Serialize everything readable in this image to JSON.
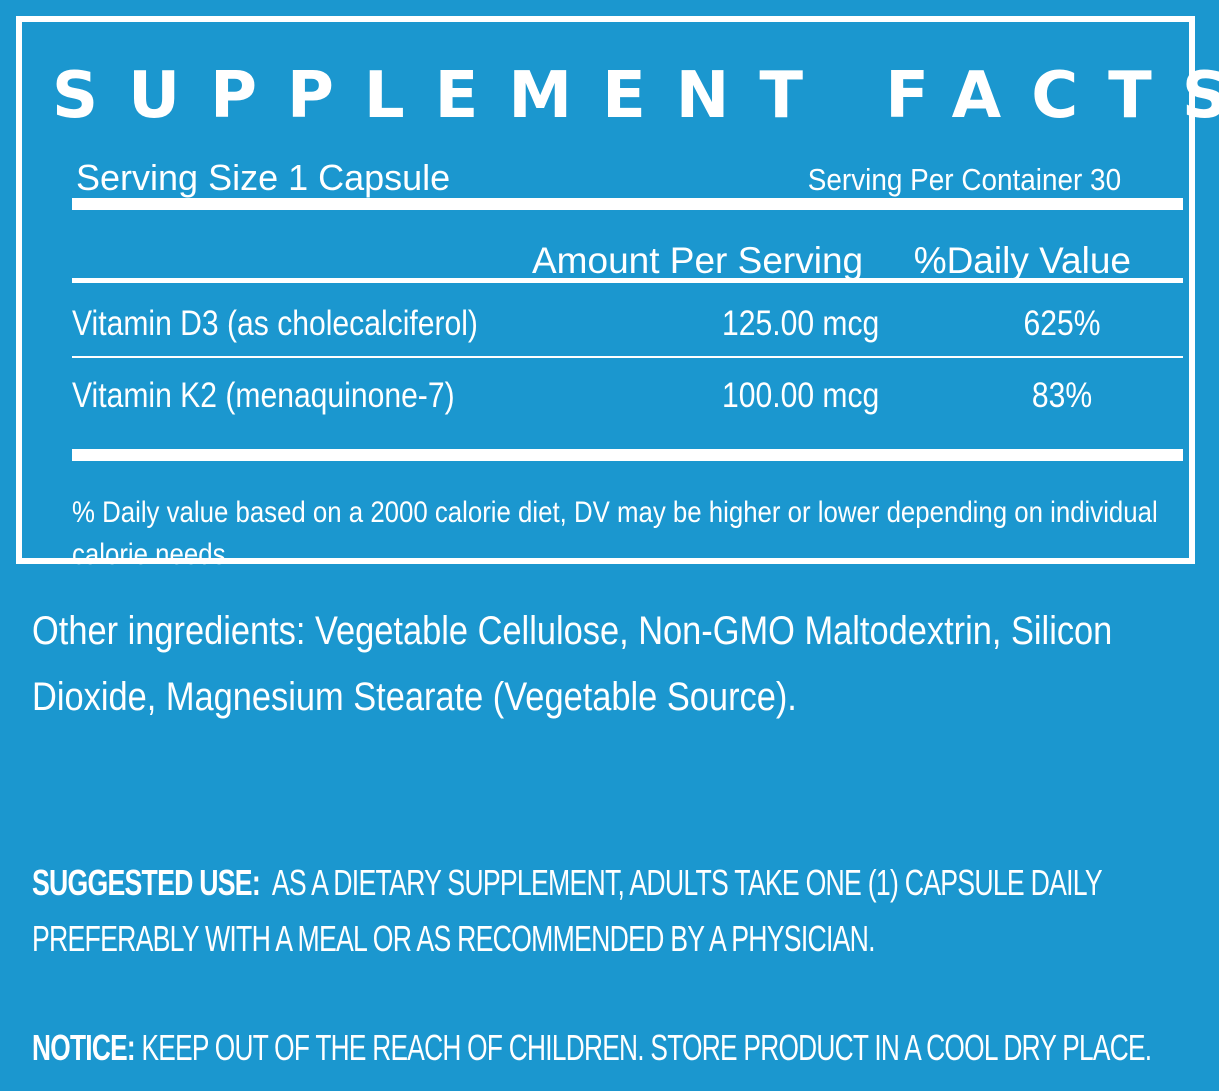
{
  "facts": {
    "title": "SUPPLEMENT FACTS",
    "serving_size": "Serving Size 1 Capsule",
    "serving_per_container": "Serving Per Container  30",
    "header_amount": "Amount Per Serving",
    "header_dv": "%Daily Value",
    "nutrients": [
      {
        "name": "Vitamin D3 (as cholecalciferol)",
        "amount": "125.00 mcg",
        "dv": "625%"
      },
      {
        "name": "Vitamin K2 (menaquinone-7)",
        "amount": "100.00 mcg",
        "dv": "83%"
      }
    ],
    "footnote": "% Daily value based on a 2000 calorie diet, DV may be higher or lower depending on individual calorie needs"
  },
  "other_ingredients": "Other ingredients: Vegetable Cellulose, Non-GMO Maltodextrin, Silicon Dioxide, Magnesium Stearate (Vegetable Source).",
  "suggested_use": {
    "label": "SUGGESTED USE:",
    "text": "AS A DIETARY SUPPLEMENT, ADULTS TAKE ONE (1) CAPSULE DAILY PREFERABLY WITH A MEAL OR AS RECOMMENDED BY A PHYSICIAN."
  },
  "notice": {
    "label": "NOTICE:",
    "text": "KEEP OUT OF THE REACH OF CHILDREN. STORE PRODUCT IN A COOL DRY PLACE."
  },
  "colors": {
    "background": "#1b97cf",
    "text": "#ffffff"
  }
}
